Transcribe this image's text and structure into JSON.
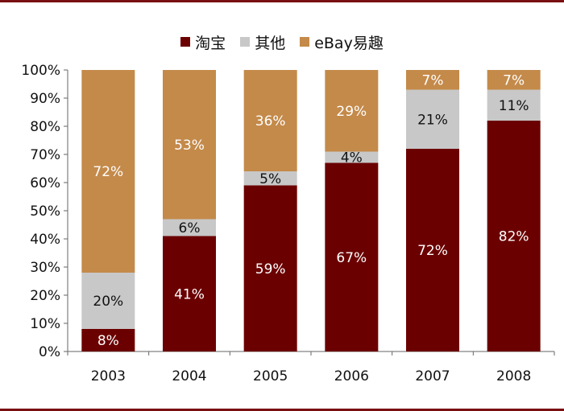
{
  "colors": {
    "taobao": "#6b0000",
    "other": "#c8c8c8",
    "ebay": "#c48a4a",
    "frame": "#7a0f14"
  },
  "chart_data": {
    "type": "bar",
    "stacked": true,
    "percent": true,
    "categories": [
      "2003",
      "2004",
      "2005",
      "2006",
      "2007",
      "2008"
    ],
    "series": [
      {
        "name": "淘宝",
        "color": "#6b0000",
        "labelColor": "#ffffff",
        "values": [
          8,
          41,
          59,
          67,
          72,
          82
        ],
        "labels": [
          "8%",
          "41%",
          "59%",
          "67%",
          "72%",
          "82%"
        ]
      },
      {
        "name": "其他",
        "color": "#c8c8c8",
        "labelColor": "#111111",
        "values": [
          20,
          6,
          5,
          4,
          21,
          11
        ],
        "labels": [
          "20%",
          "6%",
          "5%",
          "4%",
          "21%",
          "11%"
        ]
      },
      {
        "name": "eBay易趣",
        "color": "#c48a4a",
        "labelColor": "#ffffff",
        "values": [
          72,
          53,
          36,
          29,
          7,
          7
        ],
        "labels": [
          "72%",
          "53%",
          "36%",
          "29%",
          "7%",
          "7%"
        ]
      }
    ],
    "ylim": [
      0,
      100
    ],
    "yticks": [
      "0%",
      "10%",
      "20%",
      "30%",
      "40%",
      "50%",
      "60%",
      "70%",
      "80%",
      "90%",
      "100%"
    ],
    "legend_position": "top-center",
    "grid": false
  }
}
